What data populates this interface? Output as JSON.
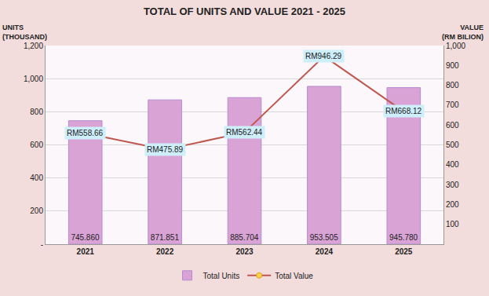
{
  "chart_data": {
    "type": "bar",
    "title": "TOTAL OF UNITS AND VALUE 2021 - 2025",
    "ylabel": "UNITS (THOUSAND)",
    "y2label": "VALUE (RM BILION)",
    "categories": [
      "2021",
      "2022",
      "2023",
      "2024",
      "2025"
    ],
    "series": [
      {
        "name": "Total Units",
        "type": "bar",
        "color": "#d9a3d6",
        "values": [
          745.86,
          871.851,
          885.704,
          953.505,
          945.78
        ],
        "value_labels": [
          "745.860",
          "871.851",
          "885.704",
          "953.505",
          "945.780"
        ]
      },
      {
        "name": "Total Value",
        "type": "line",
        "axis": "y2",
        "color": "#c0574f",
        "marker": "circle",
        "values": [
          558.66,
          475.89,
          562.44,
          946.29,
          668.12
        ],
        "value_labels": [
          "RM558.66",
          "RM475.89",
          "RM562.44",
          "RM946.29",
          "RM668.12"
        ]
      }
    ],
    "ylim": [
      0,
      1200
    ],
    "yticks": [
      {
        "value": 0,
        "label": "-"
      },
      200,
      400,
      600,
      800,
      {
        "value": 1000,
        "label": "1,000"
      },
      {
        "value": 1200,
        "label": "1,200"
      }
    ],
    "y2lim": [
      0,
      1000
    ],
    "y2ticks": [
      100,
      200,
      300,
      400,
      500,
      600,
      700,
      800,
      900,
      {
        "value": 1000,
        "label": "1,000"
      }
    ],
    "grid": true,
    "legend": "bottom",
    "data_labels": true
  }
}
